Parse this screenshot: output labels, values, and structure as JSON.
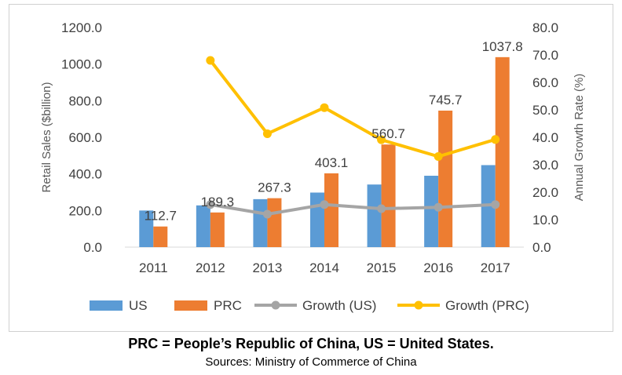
{
  "chart_data": {
    "type": "bar",
    "categories": [
      "2011",
      "2012",
      "2013",
      "2014",
      "2015",
      "2016",
      "2017"
    ],
    "bar_series": [
      {
        "name": "US",
        "color": "#5b9bd5",
        "values": [
          200,
          228,
          262,
          298,
          342,
          390,
          448
        ]
      },
      {
        "name": "PRC",
        "color": "#ed7d31",
        "values": [
          112.7,
          189.3,
          267.3,
          403.1,
          560.7,
          745.7,
          1037.8
        ],
        "data_labels": [
          "112.7",
          "189.3",
          "267.3",
          "403.1",
          "560.7",
          "745.7",
          "1037.8"
        ]
      }
    ],
    "line_series": [
      {
        "name": "Growth (US)",
        "color": "#a5a5a5",
        "values": [
          null,
          15.5,
          12,
          15.5,
          14,
          14.5,
          15.5
        ]
      },
      {
        "name": "Growth (PRC)",
        "color": "#ffc000",
        "values": [
          null,
          68,
          41.3,
          50.8,
          39.1,
          33,
          39.2
        ]
      }
    ],
    "ylabel": "Retail Sales ($billion)",
    "y2label": "Annual Growth Rate (%)",
    "ylim": [
      0,
      1200
    ],
    "y2lim": [
      0,
      80
    ],
    "yticks": [
      "0.0",
      "200.0",
      "400.0",
      "600.0",
      "800.0",
      "1000.0",
      "1200.0"
    ],
    "y2ticks": [
      "0.0",
      "10.0",
      "20.0",
      "30.0",
      "40.0",
      "50.0",
      "60.0",
      "70.0",
      "80.0"
    ],
    "legend_position": "bottom",
    "gridlines": false
  },
  "caption": "PRC = People’s Republic of China, US = United States.",
  "sources": "Sources: Ministry of Commerce of China"
}
